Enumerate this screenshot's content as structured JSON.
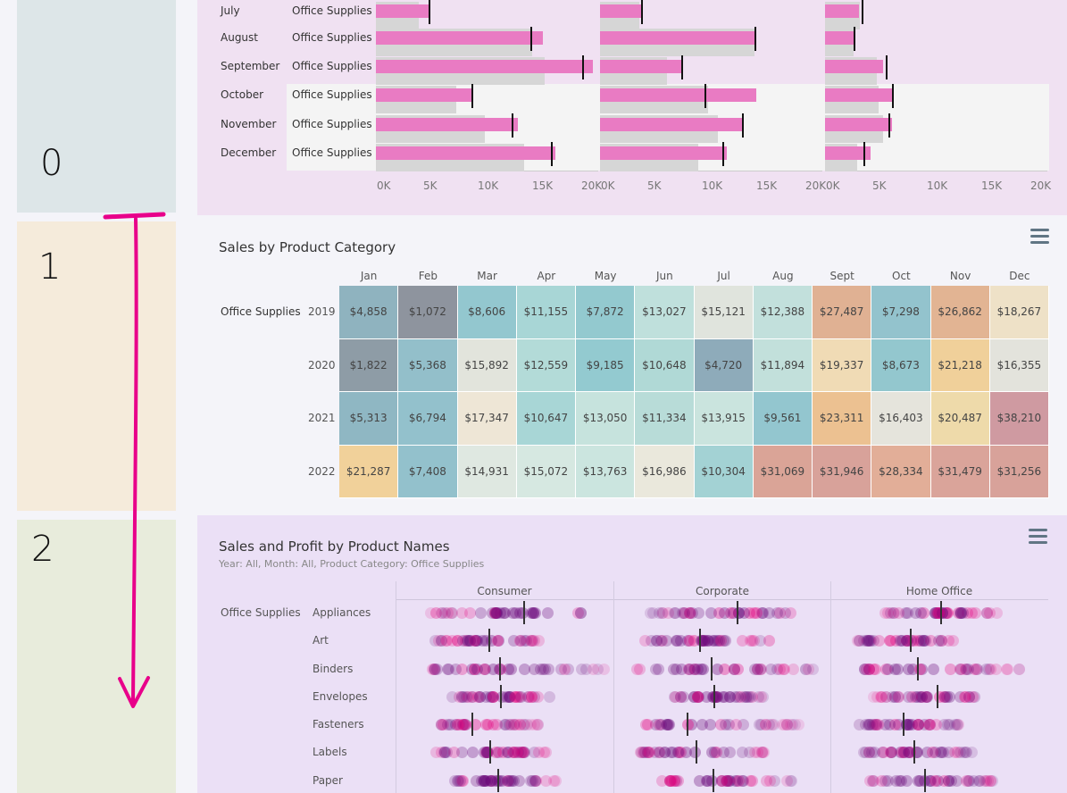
{
  "steps": [
    "0",
    "1",
    "2"
  ],
  "bullet_chart": {
    "months": [
      "July",
      "August",
      "September",
      "October",
      "November",
      "December"
    ],
    "category": "Office Supplies",
    "x_ticks": [
      "0K",
      "5K",
      "10K",
      "15K",
      "20K"
    ],
    "panels": [
      {
        "bars": [
          4400,
          15200,
          20000,
          8500,
          12800,
          16400
        ],
        "refs": [
          3300,
          14200,
          15400,
          6900,
          9700,
          13400
        ],
        "targets": [
          4300,
          14000,
          19000,
          8400,
          12200,
          16000
        ]
      },
      {
        "bars": [
          3200,
          14000,
          7000,
          14200,
          12900,
          11400
        ],
        "refs": [
          3000,
          14000,
          5600,
          9600,
          10500,
          8600
        ],
        "targets": [
          3200,
          14000,
          7000,
          9200,
          12800,
          10900
        ]
      },
      {
        "bars": [
          2500,
          2100,
          4800,
          5700,
          5600,
          3600
        ],
        "refs": [
          2600,
          2000,
          4200,
          4400,
          4800,
          2300
        ],
        "targets": [
          2700,
          2000,
          5000,
          5600,
          5300,
          2900
        ]
      }
    ]
  },
  "heatmap": {
    "title": "Sales by Product Category",
    "category": "Office Supplies",
    "months": [
      "Jan",
      "Feb",
      "Mar",
      "Apr",
      "May",
      "Jun",
      "Jul",
      "Aug",
      "Sept",
      "Oct",
      "Nov",
      "Dec"
    ],
    "years": [
      "2019",
      "2020",
      "2021",
      "2022"
    ],
    "values": [
      [
        "$4,858",
        "$1,072",
        "$8,606",
        "$11,155",
        "$7,872",
        "$13,027",
        "$15,121",
        "$12,388",
        "$27,487",
        "$7,298",
        "$26,862",
        "$18,267"
      ],
      [
        "$1,822",
        "$5,368",
        "$15,892",
        "$12,559",
        "$9,185",
        "$10,648",
        "$4,720",
        "$11,894",
        "$19,337",
        "$8,673",
        "$21,218",
        "$16,355"
      ],
      [
        "$5,313",
        "$6,794",
        "$17,347",
        "$10,647",
        "$13,050",
        "$11,334",
        "$13,915",
        "$9,561",
        "$23,311",
        "$16,403",
        "$20,487",
        "$38,210"
      ],
      [
        "$21,287",
        "$7,408",
        "$14,931",
        "$15,072",
        "$13,763",
        "$16,986",
        "$10,304",
        "$31,069",
        "$31,946",
        "$28,334",
        "$31,479",
        "$31,256"
      ]
    ],
    "colors": [
      [
        "#8fb3bf",
        "#8e949e",
        "#93c7cf",
        "#a8d6d6",
        "#93c9cf",
        "#bfe0dc",
        "#e0e4dd",
        "#c2e0dc",
        "#e0b193",
        "#93c3cd",
        "#e2b493",
        "#eee1c7"
      ],
      [
        "#8e9ca6",
        "#93bfca",
        "#e2e4dc",
        "#b3dbd8",
        "#93cad0",
        "#b0d9d6",
        "#8eabba",
        "#c2e0db",
        "#f0dbb5",
        "#93c7ce",
        "#f0d09a",
        "#e3e3dc"
      ],
      [
        "#8fb7c3",
        "#93c1cc",
        "#eee6d6",
        "#a8d6d6",
        "#c6e3dd",
        "#b8dcd8",
        "#cae4de",
        "#93c6cf",
        "#ecc191",
        "#e5e4dc",
        "#eedaaa",
        "#cf9aa1"
      ],
      [
        "#f1d19a",
        "#93c1cc",
        "#dfe8e1",
        "#d6e8e1",
        "#cbe5df",
        "#eae8dc",
        "#a3d2d4",
        "#daa497",
        "#d8a29a",
        "#e2ae98",
        "#daa49a",
        "#d8a29a"
      ]
    ]
  },
  "dots": {
    "title": "Sales and Profit by Product Names",
    "subtitle": "Year: All, Month: All, Product Category: Office Supplies",
    "category": "Office Supplies",
    "segments": [
      "Consumer",
      "Corporate",
      "Home Office"
    ],
    "subcategories": [
      "Appliances",
      "Art",
      "Binders",
      "Envelopes",
      "Fasteners",
      "Labels",
      "Paper"
    ],
    "colors": {
      "pink": "#e4007c",
      "purple": "#6b0a7a"
    }
  }
}
